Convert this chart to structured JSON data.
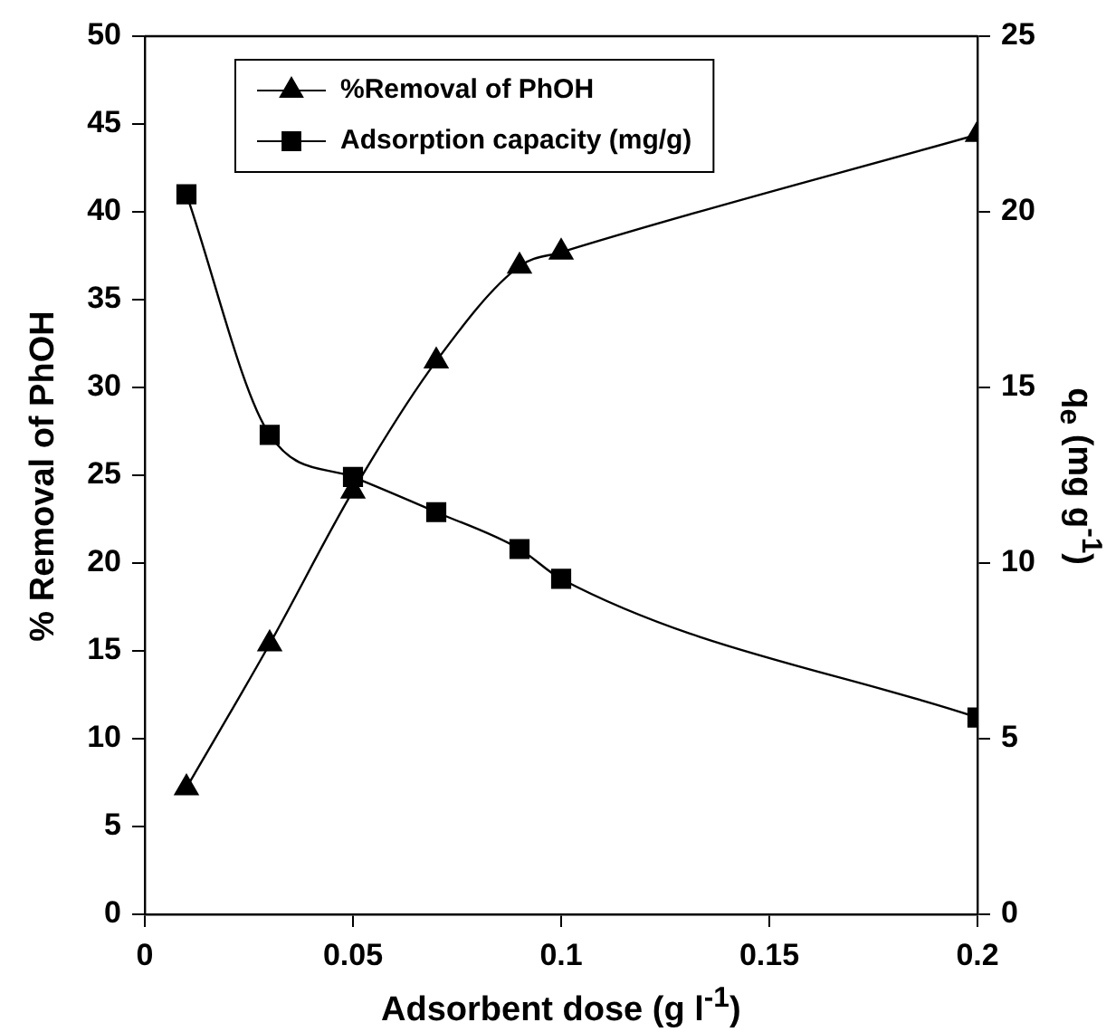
{
  "chart_data": {
    "type": "line",
    "xlabel": "Adsorbent dose (g l$^{-1}$)",
    "ylabel": "% Removal of PhOH",
    "y2label": "q$_{e}$ (mg g$^{-1}$)",
    "x": [
      0.01,
      0.03,
      0.05,
      0.07,
      0.09,
      0.1,
      0.2
    ],
    "series": [
      {
        "name": "%Removal of PhOH",
        "color": "#000000",
        "marker": "triangle",
        "values": [
          7.2,
          15.4,
          24.1,
          31.5,
          36.9,
          37.7,
          44.4
        ]
      },
      {
        "name": "Adsorption capacity (mg/g)",
        "color": "#000000",
        "marker": "square",
        "axis": "y2",
        "values": [
          20.5,
          13.65,
          12.45,
          11.45,
          10.4,
          9.55,
          5.6
        ]
      }
    ],
    "xlim": [
      0,
      0.2
    ],
    "xticks": [
      0,
      0.05,
      0.1,
      0.15,
      0.2
    ],
    "ylim": [
      0,
      50
    ],
    "yticks": [
      0,
      5,
      10,
      15,
      20,
      25,
      30,
      35,
      40,
      45,
      50
    ],
    "y2lim": [
      0,
      25
    ],
    "y2ticks": [
      0,
      5,
      10,
      15,
      20,
      25
    ],
    "grid": false,
    "legend": "top left"
  }
}
